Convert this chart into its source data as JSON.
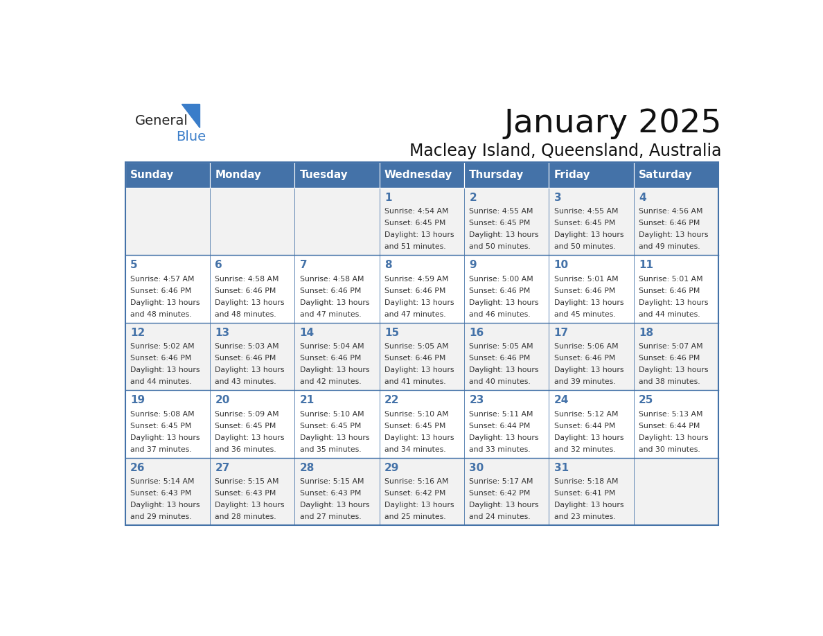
{
  "title": "January 2025",
  "subtitle": "Macleay Island, Queensland, Australia",
  "days_of_week": [
    "Sunday",
    "Monday",
    "Tuesday",
    "Wednesday",
    "Thursday",
    "Friday",
    "Saturday"
  ],
  "header_bg": "#4472a8",
  "header_text": "#ffffff",
  "odd_row_bg": "#f2f2f2",
  "even_row_bg": "#ffffff",
  "border_color": "#4472a8",
  "day_number_color": "#4472a8",
  "text_color": "#333333",
  "calendar_data": [
    [
      {
        "day": "",
        "sunrise": "",
        "sunset": "",
        "daylight": ""
      },
      {
        "day": "",
        "sunrise": "",
        "sunset": "",
        "daylight": ""
      },
      {
        "day": "",
        "sunrise": "",
        "sunset": "",
        "daylight": ""
      },
      {
        "day": "1",
        "sunrise": "4:54 AM",
        "sunset": "6:45 PM",
        "daylight": "13 hours and 51 minutes."
      },
      {
        "day": "2",
        "sunrise": "4:55 AM",
        "sunset": "6:45 PM",
        "daylight": "13 hours and 50 minutes."
      },
      {
        "day": "3",
        "sunrise": "4:55 AM",
        "sunset": "6:45 PM",
        "daylight": "13 hours and 50 minutes."
      },
      {
        "day": "4",
        "sunrise": "4:56 AM",
        "sunset": "6:46 PM",
        "daylight": "13 hours and 49 minutes."
      }
    ],
    [
      {
        "day": "5",
        "sunrise": "4:57 AM",
        "sunset": "6:46 PM",
        "daylight": "13 hours and 48 minutes."
      },
      {
        "day": "6",
        "sunrise": "4:58 AM",
        "sunset": "6:46 PM",
        "daylight": "13 hours and 48 minutes."
      },
      {
        "day": "7",
        "sunrise": "4:58 AM",
        "sunset": "6:46 PM",
        "daylight": "13 hours and 47 minutes."
      },
      {
        "day": "8",
        "sunrise": "4:59 AM",
        "sunset": "6:46 PM",
        "daylight": "13 hours and 47 minutes."
      },
      {
        "day": "9",
        "sunrise": "5:00 AM",
        "sunset": "6:46 PM",
        "daylight": "13 hours and 46 minutes."
      },
      {
        "day": "10",
        "sunrise": "5:01 AM",
        "sunset": "6:46 PM",
        "daylight": "13 hours and 45 minutes."
      },
      {
        "day": "11",
        "sunrise": "5:01 AM",
        "sunset": "6:46 PM",
        "daylight": "13 hours and 44 minutes."
      }
    ],
    [
      {
        "day": "12",
        "sunrise": "5:02 AM",
        "sunset": "6:46 PM",
        "daylight": "13 hours and 44 minutes."
      },
      {
        "day": "13",
        "sunrise": "5:03 AM",
        "sunset": "6:46 PM",
        "daylight": "13 hours and 43 minutes."
      },
      {
        "day": "14",
        "sunrise": "5:04 AM",
        "sunset": "6:46 PM",
        "daylight": "13 hours and 42 minutes."
      },
      {
        "day": "15",
        "sunrise": "5:05 AM",
        "sunset": "6:46 PM",
        "daylight": "13 hours and 41 minutes."
      },
      {
        "day": "16",
        "sunrise": "5:05 AM",
        "sunset": "6:46 PM",
        "daylight": "13 hours and 40 minutes."
      },
      {
        "day": "17",
        "sunrise": "5:06 AM",
        "sunset": "6:46 PM",
        "daylight": "13 hours and 39 minutes."
      },
      {
        "day": "18",
        "sunrise": "5:07 AM",
        "sunset": "6:46 PM",
        "daylight": "13 hours and 38 minutes."
      }
    ],
    [
      {
        "day": "19",
        "sunrise": "5:08 AM",
        "sunset": "6:45 PM",
        "daylight": "13 hours and 37 minutes."
      },
      {
        "day": "20",
        "sunrise": "5:09 AM",
        "sunset": "6:45 PM",
        "daylight": "13 hours and 36 minutes."
      },
      {
        "day": "21",
        "sunrise": "5:10 AM",
        "sunset": "6:45 PM",
        "daylight": "13 hours and 35 minutes."
      },
      {
        "day": "22",
        "sunrise": "5:10 AM",
        "sunset": "6:45 PM",
        "daylight": "13 hours and 34 minutes."
      },
      {
        "day": "23",
        "sunrise": "5:11 AM",
        "sunset": "6:44 PM",
        "daylight": "13 hours and 33 minutes."
      },
      {
        "day": "24",
        "sunrise": "5:12 AM",
        "sunset": "6:44 PM",
        "daylight": "13 hours and 32 minutes."
      },
      {
        "day": "25",
        "sunrise": "5:13 AM",
        "sunset": "6:44 PM",
        "daylight": "13 hours and 30 minutes."
      }
    ],
    [
      {
        "day": "26",
        "sunrise": "5:14 AM",
        "sunset": "6:43 PM",
        "daylight": "13 hours and 29 minutes."
      },
      {
        "day": "27",
        "sunrise": "5:15 AM",
        "sunset": "6:43 PM",
        "daylight": "13 hours and 28 minutes."
      },
      {
        "day": "28",
        "sunrise": "5:15 AM",
        "sunset": "6:43 PM",
        "daylight": "13 hours and 27 minutes."
      },
      {
        "day": "29",
        "sunrise": "5:16 AM",
        "sunset": "6:42 PM",
        "daylight": "13 hours and 25 minutes."
      },
      {
        "day": "30",
        "sunrise": "5:17 AM",
        "sunset": "6:42 PM",
        "daylight": "13 hours and 24 minutes."
      },
      {
        "day": "31",
        "sunrise": "5:18 AM",
        "sunset": "6:41 PM",
        "daylight": "13 hours and 23 minutes."
      },
      {
        "day": "",
        "sunrise": "",
        "sunset": "",
        "daylight": ""
      }
    ]
  ]
}
